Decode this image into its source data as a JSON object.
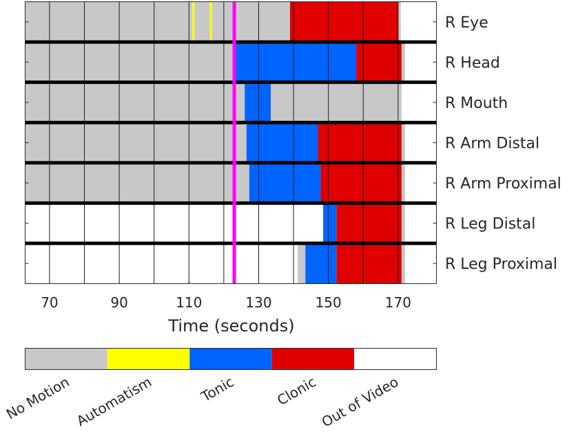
{
  "chart_data": {
    "type": "timeline",
    "xlabel": "Time (seconds)",
    "xlim": [
      63,
      181
    ],
    "xticks": [
      70,
      90,
      110,
      130,
      150,
      170
    ],
    "vertical_gridlines": [
      70,
      80,
      90,
      100,
      110,
      120,
      130,
      140,
      150,
      160,
      170
    ],
    "grid": true,
    "marker_line": {
      "x": 123,
      "color": "#ff00ff"
    },
    "categories": [
      {
        "key": "no_motion",
        "label": "No Motion",
        "color": "#c8c8c8"
      },
      {
        "key": "automatism",
        "label": "Automatism",
        "color": "#ffff00"
      },
      {
        "key": "tonic",
        "label": "Tonic",
        "color": "#0064ff"
      },
      {
        "key": "clonic",
        "label": "Clonic",
        "color": "#e00000"
      },
      {
        "key": "out_of_video",
        "label": "Out of Video",
        "color": "#ffffff"
      }
    ],
    "rows": [
      {
        "label": "R Eye",
        "segments": [
          {
            "start": 63,
            "end": 111,
            "state": "no_motion"
          },
          {
            "start": 111,
            "end": 111.6,
            "state": "automatism"
          },
          {
            "start": 111.6,
            "end": 116,
            "state": "no_motion"
          },
          {
            "start": 116,
            "end": 116.6,
            "state": "automatism"
          },
          {
            "start": 116.6,
            "end": 139,
            "state": "no_motion"
          },
          {
            "start": 139,
            "end": 170,
            "state": "clonic"
          },
          {
            "start": 170,
            "end": 170.8,
            "state": "no_motion"
          },
          {
            "start": 170.8,
            "end": 181,
            "state": "out_of_video"
          }
        ]
      },
      {
        "label": "R Head",
        "segments": [
          {
            "start": 63,
            "end": 123,
            "state": "no_motion"
          },
          {
            "start": 123,
            "end": 158,
            "state": "tonic"
          },
          {
            "start": 158,
            "end": 171,
            "state": "clonic"
          },
          {
            "start": 171,
            "end": 172,
            "state": "no_motion"
          },
          {
            "start": 172,
            "end": 181,
            "state": "out_of_video"
          }
        ]
      },
      {
        "label": "R Mouth",
        "segments": [
          {
            "start": 63,
            "end": 126,
            "state": "no_motion"
          },
          {
            "start": 126,
            "end": 133.5,
            "state": "tonic"
          },
          {
            "start": 133.5,
            "end": 171,
            "state": "no_motion"
          },
          {
            "start": 171,
            "end": 181,
            "state": "out_of_video"
          }
        ]
      },
      {
        "label": "R Arm Distal",
        "segments": [
          {
            "start": 63,
            "end": 126.5,
            "state": "no_motion"
          },
          {
            "start": 126.5,
            "end": 147,
            "state": "tonic"
          },
          {
            "start": 147,
            "end": 171,
            "state": "clonic"
          },
          {
            "start": 171,
            "end": 172,
            "state": "no_motion"
          },
          {
            "start": 172,
            "end": 181,
            "state": "out_of_video"
          }
        ]
      },
      {
        "label": "R Arm Proximal",
        "segments": [
          {
            "start": 63,
            "end": 127.3,
            "state": "no_motion"
          },
          {
            "start": 127.3,
            "end": 147.8,
            "state": "tonic"
          },
          {
            "start": 147.8,
            "end": 171,
            "state": "clonic"
          },
          {
            "start": 171,
            "end": 172,
            "state": "no_motion"
          },
          {
            "start": 172,
            "end": 181,
            "state": "out_of_video"
          }
        ]
      },
      {
        "label": "R Leg Distal",
        "segments": [
          {
            "start": 63,
            "end": 148.5,
            "state": "out_of_video"
          },
          {
            "start": 148.5,
            "end": 152.3,
            "state": "tonic"
          },
          {
            "start": 152.3,
            "end": 171,
            "state": "clonic"
          },
          {
            "start": 171,
            "end": 172,
            "state": "no_motion"
          },
          {
            "start": 172,
            "end": 181,
            "state": "out_of_video"
          }
        ]
      },
      {
        "label": "R Leg Proximal",
        "segments": [
          {
            "start": 63,
            "end": 141.2,
            "state": "out_of_video"
          },
          {
            "start": 141.2,
            "end": 143.4,
            "state": "no_motion"
          },
          {
            "start": 143.4,
            "end": 152.3,
            "state": "tonic"
          },
          {
            "start": 152.3,
            "end": 171,
            "state": "clonic"
          },
          {
            "start": 171,
            "end": 172,
            "state": "no_motion"
          },
          {
            "start": 172,
            "end": 181,
            "state": "out_of_video"
          }
        ]
      }
    ]
  }
}
